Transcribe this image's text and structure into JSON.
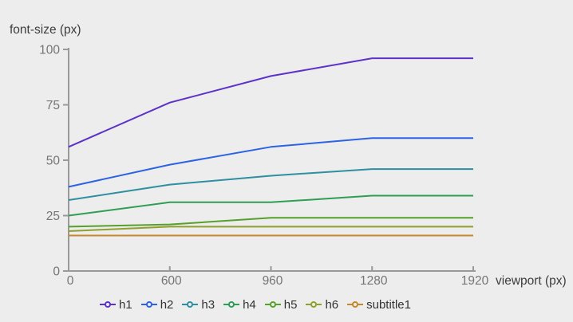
{
  "chart_data": {
    "type": "line",
    "title": "",
    "ylabel": "font-size (px)",
    "xlabel": "viewport (px)",
    "x_tick_labels": [
      "0",
      "600",
      "960",
      "1280",
      "1920"
    ],
    "y_tick_labels": [
      "0",
      "25",
      "50",
      "75",
      "100"
    ],
    "y_ticks": [
      0,
      25,
      50,
      75,
      100
    ],
    "ylim": [
      0,
      100
    ],
    "x_axis_note": "breakpoints equally spaced (categorical)",
    "grid": false,
    "legend_position": "bottom",
    "categories": [
      0,
      600,
      960,
      1280,
      1920
    ],
    "series": [
      {
        "name": "h1",
        "color": "#5c32c8",
        "values": [
          56,
          76,
          88,
          96,
          96
        ]
      },
      {
        "name": "h2",
        "color": "#2c62e4",
        "values": [
          38,
          48,
          56,
          60,
          60
        ]
      },
      {
        "name": "h3",
        "color": "#2d8fa0",
        "values": [
          32,
          39,
          43,
          46,
          46
        ]
      },
      {
        "name": "h4",
        "color": "#2e9e55",
        "values": [
          25,
          31,
          31,
          34,
          34
        ]
      },
      {
        "name": "h5",
        "color": "#57a02c",
        "values": [
          20,
          21,
          24,
          24,
          24
        ]
      },
      {
        "name": "h6",
        "color": "#8fa02c",
        "values": [
          18,
          20,
          20,
          20,
          20
        ]
      },
      {
        "name": "subtitle1",
        "color": "#c6882a",
        "values": [
          16,
          16,
          16,
          16,
          16
        ]
      }
    ]
  },
  "colors": {
    "background": "#ededed",
    "axis": "#999999",
    "tick_text": "#757575",
    "axis_title_text": "#3d3d3d",
    "legend_text": "#333333"
  }
}
